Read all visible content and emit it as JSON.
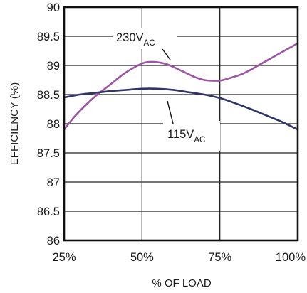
{
  "chart_data": {
    "type": "line",
    "title": "",
    "xlabel": "% OF LOAD",
    "ylabel": "EFFICIENCY (%)",
    "xlim": [
      25,
      100
    ],
    "ylim": [
      86,
      90
    ],
    "x_ticks": [
      25,
      50,
      75,
      100
    ],
    "x_tick_labels": [
      "25%",
      "50%",
      "75%",
      "100%"
    ],
    "y_ticks": [
      86,
      86.5,
      87,
      87.5,
      88,
      88.5,
      89,
      89.5,
      90
    ],
    "y_tick_labels": [
      "86",
      "86.5",
      "87",
      "87.5",
      "88",
      "88.5",
      "89",
      "89.5",
      "90"
    ],
    "grid": true,
    "series": [
      {
        "name_main": "230V",
        "name_sub": "AC",
        "color": "#9b55a3",
        "x": [
          25,
          28,
          31,
          35,
          40,
          44,
          48,
          51,
          54,
          58,
          63,
          67,
          70,
          72,
          75,
          78,
          82,
          85,
          90,
          95,
          100
        ],
        "y": [
          87.9,
          88.1,
          88.27,
          88.47,
          88.68,
          88.85,
          88.98,
          89.05,
          89.06,
          89.02,
          88.9,
          88.8,
          88.75,
          88.74,
          88.74,
          88.78,
          88.85,
          88.93,
          89.08,
          89.23,
          89.38
        ]
      },
      {
        "name_main": "115V",
        "name_sub": "AC",
        "color": "#2f3566",
        "x": [
          25,
          30,
          35,
          40,
          45,
          50,
          55,
          60,
          65,
          70,
          75,
          80,
          85,
          90,
          95,
          100
        ],
        "y": [
          88.45,
          88.5,
          88.53,
          88.56,
          88.58,
          88.6,
          88.6,
          88.58,
          88.54,
          88.5,
          88.44,
          88.35,
          88.25,
          88.14,
          88.03,
          87.9
        ]
      }
    ]
  }
}
